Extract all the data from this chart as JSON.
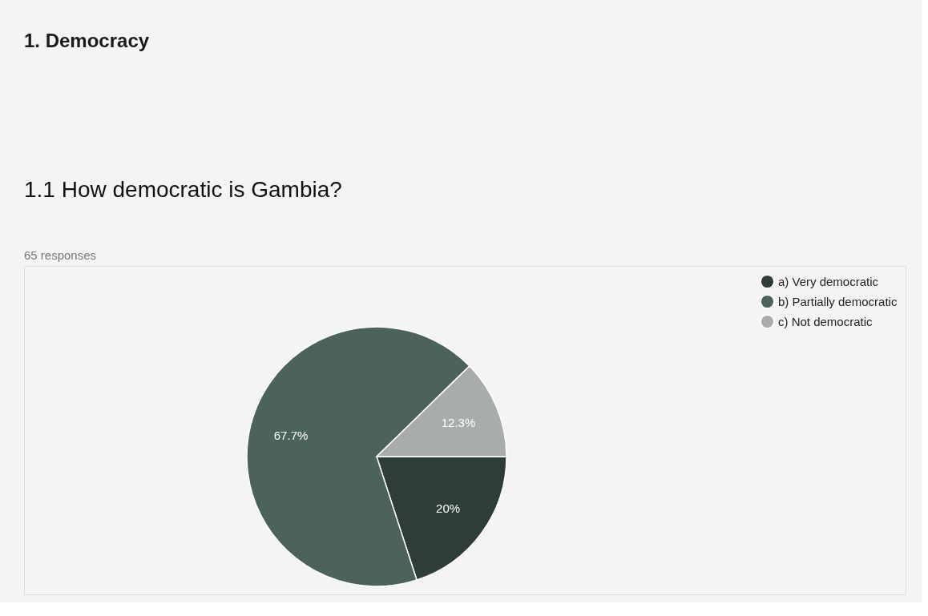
{
  "chart_data": {
    "type": "pie",
    "title": "1. Democracy",
    "subtitle": "1.1 How democratic is Gambia?",
    "annotations": [
      "65 responses"
    ],
    "categories": [
      "a) Very democratic",
      "b) Partially democratic",
      "c) Not democratic"
    ],
    "values": [
      20,
      67.7,
      12.3
    ],
    "value_labels": [
      "20%",
      "67.7%",
      "12.3%"
    ],
    "colors": [
      "#2e3d38",
      "#4b635b",
      "#a9adaa"
    ],
    "legend": "top right"
  }
}
